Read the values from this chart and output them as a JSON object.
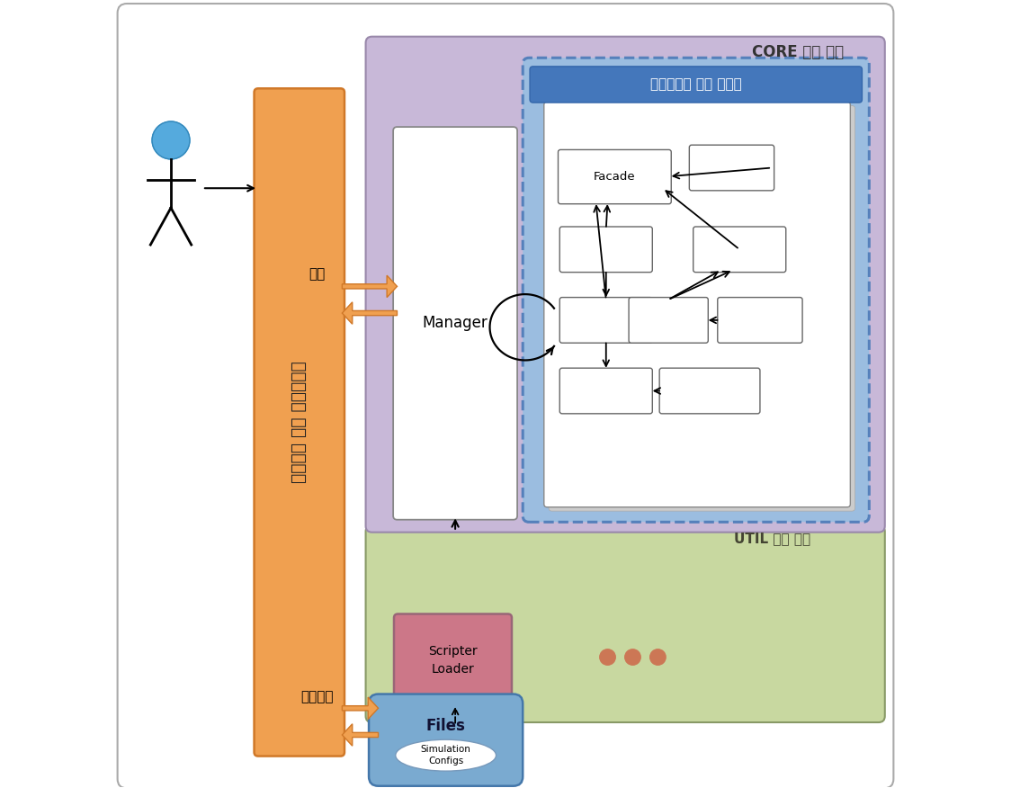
{
  "figure_size": [
    11.24,
    8.76
  ],
  "dpi": 100,
  "bg_color": "#ffffff",
  "core_label": "CORE 모듈 그룹",
  "util_label": "UTIL 모듈 그룹",
  "sim_pkg_label": "시뮬레이션 모듈 패키지",
  "manager_label": "Manager",
  "facade_label": "Facade",
  "scripter_label": "Scripter\nLoader",
  "files_label": "Files",
  "sim_configs_label": "Simulation\nConfigs",
  "library_label": "스크립트 지원 라이브러리",
  "expand_label": "확장",
  "func_label": "기능제어",
  "orange_color": "#f0a050",
  "orange_edge": "#d07828",
  "purple_color": "#c8b8d8",
  "blue_pkg_color": "#9bbde0",
  "blue_pkg_edge": "#5580bb",
  "green_color": "#c8d8a0",
  "green_edge": "#8899557",
  "scripter_color": "#cc7788",
  "scripter_edge": "#996677",
  "files_color": "#7aaad0",
  "files_edge": "#4477aa",
  "white_box_color": "#ffffff",
  "dots_color": "#cc7755"
}
